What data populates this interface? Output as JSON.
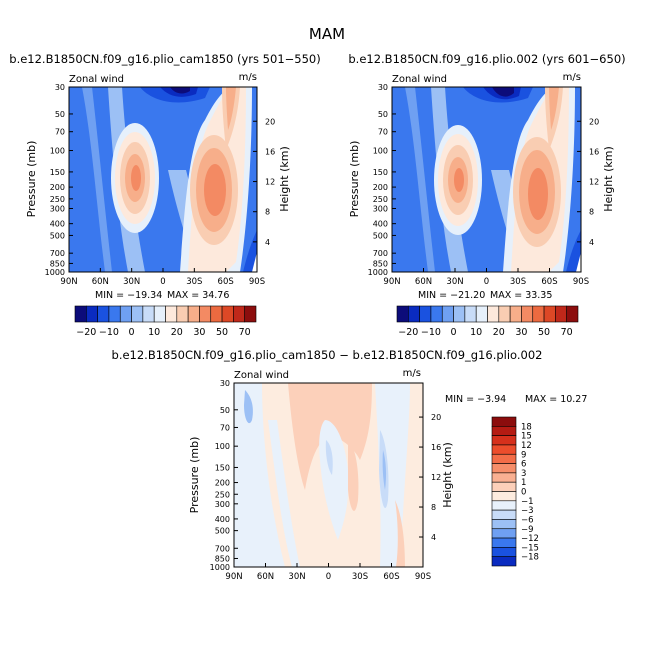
{
  "figure": {
    "title": "MAM"
  },
  "chart_data": [
    {
      "type": "heatmap",
      "title": "b.e12.B1850CN.f09_g16.plio_cam1850 (yrs 501−550)",
      "left_label": "Zonal wind",
      "right_label": "m/s",
      "ylabel": "Pressure (mb)",
      "y2label": "Height (km)",
      "x_ticks": [
        "90N",
        "60N",
        "30N",
        "0",
        "30S",
        "60S",
        "90S"
      ],
      "y_ticks": [
        "30",
        "50",
        "70",
        "100",
        "150",
        "200",
        "250",
        "300",
        "400",
        "500",
        "700",
        "850",
        "1000"
      ],
      "y2_ticks": [
        "20",
        "16",
        "12",
        "8",
        "4"
      ],
      "min_label": "MIN = −19.34",
      "max_label": "MAX =  34.76",
      "min": -19.34,
      "max": 34.76
    },
    {
      "type": "heatmap",
      "title": "b.e12.B1850CN.f09_g16.plio.002 (yrs 601−650)",
      "left_label": "Zonal wind",
      "right_label": "m/s",
      "ylabel": "Pressure (mb)",
      "y2label": "Height (km)",
      "x_ticks": [
        "90N",
        "60N",
        "30N",
        "0",
        "30S",
        "60S",
        "90S"
      ],
      "y_ticks": [
        "30",
        "50",
        "70",
        "100",
        "150",
        "200",
        "250",
        "300",
        "400",
        "500",
        "700",
        "850",
        "1000"
      ],
      "y2_ticks": [
        "20",
        "16",
        "12",
        "8",
        "4"
      ],
      "min_label": "MIN = −21.20",
      "max_label": "MAX =  33.35",
      "min": -21.2,
      "max": 33.35
    },
    {
      "type": "heatmap",
      "title": "b.e12.B1850CN.f09_g16.plio_cam1850 − b.e12.B1850CN.f09_g16.plio.002",
      "left_label": "Zonal wind",
      "right_label": "m/s",
      "ylabel": "Pressure (mb)",
      "y2label": "Height (km)",
      "x_ticks": [
        "90N",
        "60N",
        "30N",
        "0",
        "30S",
        "60S",
        "90S"
      ],
      "y_ticks": [
        "30",
        "50",
        "70",
        "100",
        "150",
        "200",
        "250",
        "300",
        "400",
        "500",
        "700",
        "850",
        "1000"
      ],
      "y2_ticks": [
        "20",
        "16",
        "12",
        "8",
        "4"
      ],
      "min_label": "MIN =  −3.94",
      "max_label": "MAX =  10.27",
      "min": -3.94,
      "max": 10.27
    }
  ],
  "colorbar_top": {
    "labels": [
      "−20",
      "−10",
      "0",
      "10",
      "20",
      "30",
      "50",
      "70"
    ],
    "colors": [
      "#0c0c7a",
      "#0a2bc0",
      "#1a52e0",
      "#3a78ee",
      "#6fa0f2",
      "#9cc0f5",
      "#c8dcf8",
      "#e6f0fb",
      "#fde9dc",
      "#f9cdb2",
      "#f7ae8a",
      "#f38a63",
      "#ec6a40",
      "#dd4826",
      "#c0281a",
      "#8c0d0d"
    ]
  },
  "colorbar_diff": {
    "labels": [
      "18",
      "15",
      "12",
      "9",
      "6",
      "3",
      "1",
      "0",
      "−1",
      "−3",
      "−6",
      "−9",
      "−12",
      "−15",
      "−18"
    ],
    "colors": [
      "#8c0d0d",
      "#b51b13",
      "#d6301c",
      "#ec4d2c",
      "#f36d48",
      "#f68e6a",
      "#f9b092",
      "#fcd0ba",
      "#fdecdf",
      "#e8f1fb",
      "#c8dcf8",
      "#9cc0f5",
      "#6fa0f2",
      "#3a78ee",
      "#1a52e0",
      "#0a2bc0"
    ]
  }
}
